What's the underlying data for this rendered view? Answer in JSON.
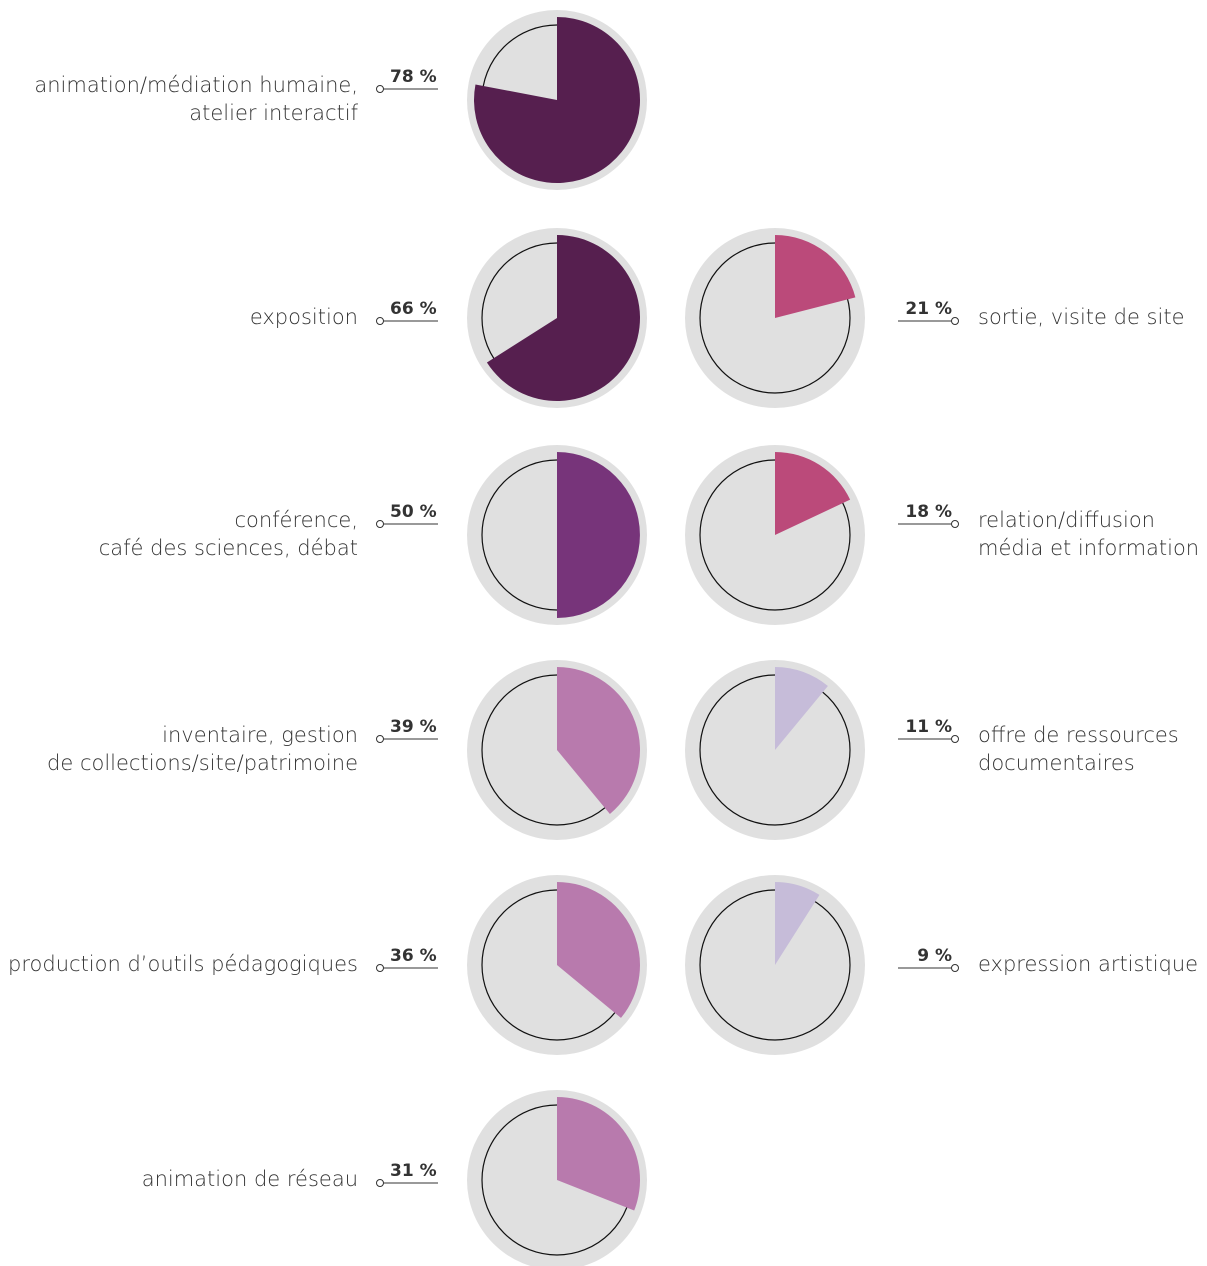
{
  "chart_data": [
    {
      "type": "pie",
      "label": [
        "animation/médiation humaine,",
        "atelier interactif"
      ],
      "values": [
        78
      ],
      "value_labels": [
        "78 %"
      ],
      "color": "#561f4f"
    },
    {
      "type": "pie",
      "label": [
        "exposition"
      ],
      "values": [
        66
      ],
      "value_labels": [
        "66 %"
      ],
      "color": "#561f4f"
    },
    {
      "type": "pie",
      "label": [
        "conférence,",
        "café des sciences, débat"
      ],
      "values": [
        50
      ],
      "value_labels": [
        "50 %"
      ],
      "color": "#77347a"
    },
    {
      "type": "pie",
      "label": [
        "inventaire, gestion",
        "de collections/site/patrimoine"
      ],
      "values": [
        39
      ],
      "value_labels": [
        "39 %"
      ],
      "color": "#b87aad"
    },
    {
      "type": "pie",
      "label": [
        "production d’outils pédagogiques"
      ],
      "values": [
        36
      ],
      "value_labels": [
        "36 %"
      ],
      "color": "#b87aad"
    },
    {
      "type": "pie",
      "label": [
        "animation de réseau"
      ],
      "values": [
        31
      ],
      "value_labels": [
        "31 %"
      ],
      "color": "#b87aad"
    },
    {
      "type": "pie",
      "label": [
        "sortie, visite de site"
      ],
      "values": [
        21
      ],
      "value_labels": [
        "21 %"
      ],
      "color": "#bb4a7a"
    },
    {
      "type": "pie",
      "label": [
        "relation/diffusion",
        "média et information"
      ],
      "values": [
        18
      ],
      "value_labels": [
        "18 %"
      ],
      "color": "#bb4a7a"
    },
    {
      "type": "pie",
      "label": [
        "offre de ressources",
        "documentaires"
      ],
      "values": [
        11
      ],
      "value_labels": [
        "11 %"
      ],
      "color": "#c6bcd9"
    },
    {
      "type": "pie",
      "label": [
        "expression artistique"
      ],
      "values": [
        9
      ],
      "value_labels": [
        "9 %"
      ],
      "color": "#c6bcd9"
    }
  ]
}
